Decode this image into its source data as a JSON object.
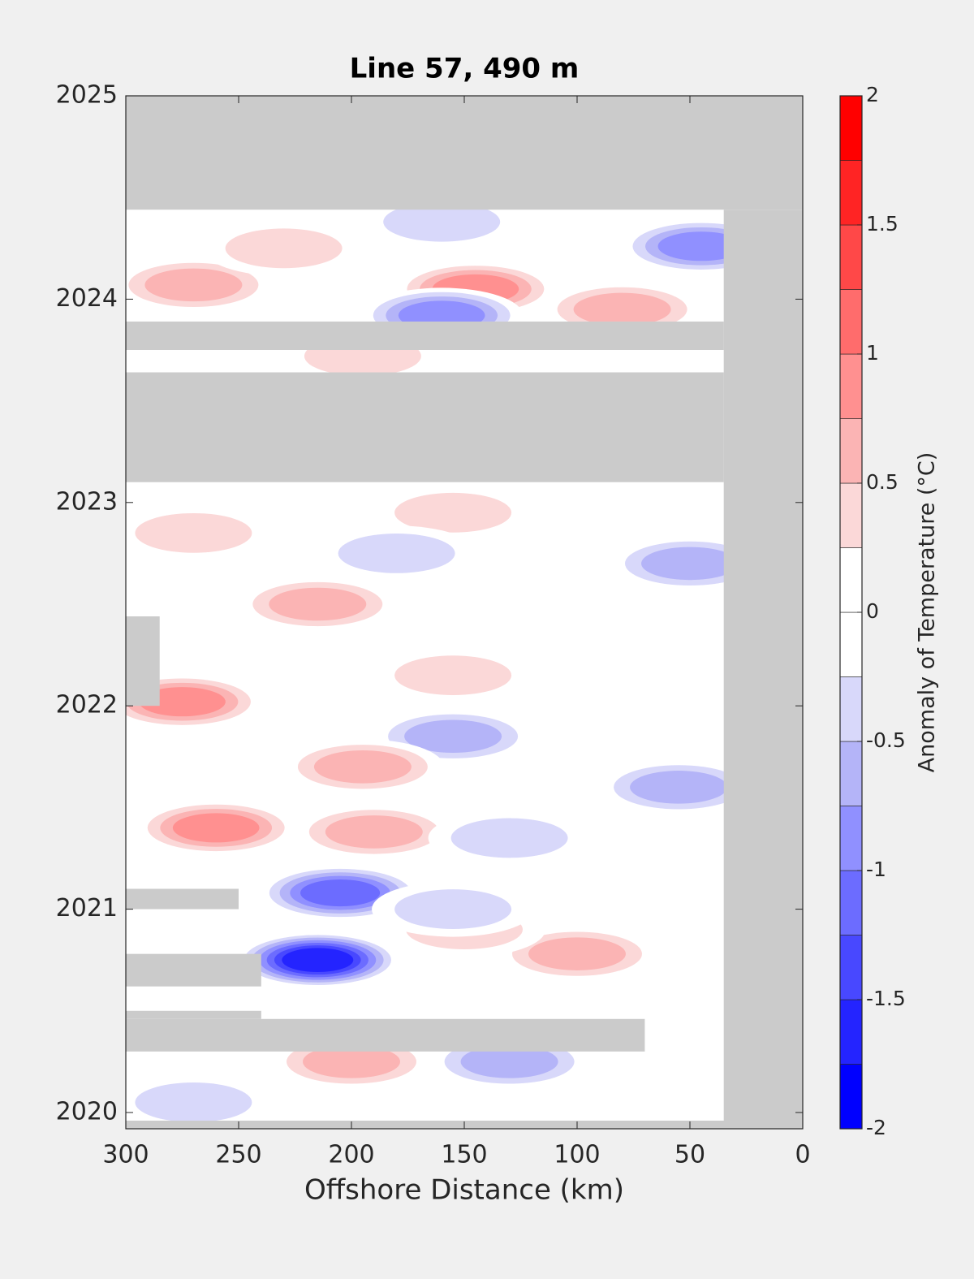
{
  "chart_data": {
    "type": "contour",
    "title": "Line 57, 490 m",
    "x_label": "Offshore Distance (km)",
    "colorbar_label": "Anomaly of Temperature (°C)",
    "xlim": [
      300,
      0
    ],
    "xticks": [
      300,
      250,
      200,
      150,
      100,
      50,
      0
    ],
    "ylim": [
      2019.92,
      2025
    ],
    "yticks": [
      2020,
      2021,
      2022,
      2023,
      2024,
      2025
    ],
    "clim": [
      -2,
      2
    ],
    "cticks": [
      -2,
      -1.5,
      -1,
      -0.5,
      0,
      0.5,
      1,
      1.5,
      2
    ],
    "level_step": 0.25,
    "colormap": [
      "#0000ff",
      "#2424ff",
      "#4848ff",
      "#6c6cff",
      "#9090ff",
      "#b4b4f8",
      "#d8d8fa",
      "#ffffff",
      "#ffffff",
      "#fbd8d8",
      "#fbb4b4",
      "#ff9090",
      "#ff6c6c",
      "#ff4848",
      "#ff2424",
      "#ff0000"
    ],
    "no_data_color": "#cbcbcb",
    "no_data": [
      {
        "x": [
          300,
          0
        ],
        "y": [
          2024.44,
          2025
        ]
      },
      {
        "x": [
          35,
          0
        ],
        "y": [
          2019.92,
          2024.44
        ]
      },
      {
        "x": [
          300,
          0
        ],
        "y": [
          2019.92,
          2019.96
        ]
      },
      {
        "x": [
          300,
          35
        ],
        "y": [
          2023.1,
          2023.64
        ]
      },
      {
        "x": [
          300,
          35
        ],
        "y": [
          2023.75,
          2023.89
        ]
      },
      {
        "x": [
          300,
          70
        ],
        "y": [
          2020.3,
          2020.46
        ]
      },
      {
        "x": [
          300,
          240
        ],
        "y": [
          2020.46,
          2020.5
        ]
      },
      {
        "x": [
          300,
          240
        ],
        "y": [
          2020.62,
          2020.78
        ]
      },
      {
        "x": [
          300,
          250
        ],
        "y": [
          2021.0,
          2021.1
        ]
      },
      {
        "x": [
          300,
          285
        ],
        "y": [
          2022.0,
          2022.44
        ]
      }
    ],
    "anomalies": [
      {
        "distance": 145,
        "year": 2024.05,
        "value": 1.0
      },
      {
        "distance": 45,
        "year": 2024.26,
        "value": -1.0
      },
      {
        "distance": 160,
        "year": 2023.92,
        "value": -1.0
      },
      {
        "distance": 270,
        "year": 2024.07,
        "value": 0.75
      },
      {
        "distance": 80,
        "year": 2023.95,
        "value": 0.75
      },
      {
        "distance": 195,
        "year": 2023.72,
        "value": 0.5
      },
      {
        "distance": 230,
        "year": 2024.25,
        "value": 0.5
      },
      {
        "distance": 160,
        "year": 2024.38,
        "value": -0.5
      },
      {
        "distance": 215,
        "year": 2022.5,
        "value": 0.75
      },
      {
        "distance": 50,
        "year": 2022.7,
        "value": -0.75
      },
      {
        "distance": 155,
        "year": 2022.95,
        "value": 0.5
      },
      {
        "distance": 270,
        "year": 2022.85,
        "value": 0.5
      },
      {
        "distance": 180,
        "year": 2022.75,
        "value": -0.5
      },
      {
        "distance": 155,
        "year": 2022.15,
        "value": 0.5
      },
      {
        "distance": 275,
        "year": 2022.02,
        "value": 1.0
      },
      {
        "distance": 155,
        "year": 2021.85,
        "value": -0.75
      },
      {
        "distance": 195,
        "year": 2021.7,
        "value": 0.75
      },
      {
        "distance": 55,
        "year": 2021.6,
        "value": -0.75
      },
      {
        "distance": 260,
        "year": 2021.4,
        "value": 1.0
      },
      {
        "distance": 190,
        "year": 2021.38,
        "value": 0.75
      },
      {
        "distance": 130,
        "year": 2021.35,
        "value": -0.5
      },
      {
        "distance": 205,
        "year": 2021.08,
        "value": -1.25
      },
      {
        "distance": 215,
        "year": 2020.75,
        "value": -1.75
      },
      {
        "distance": 100,
        "year": 2020.78,
        "value": 0.75
      },
      {
        "distance": 150,
        "year": 2020.9,
        "value": 0.5
      },
      {
        "distance": 155,
        "year": 2021.0,
        "value": -0.5
      },
      {
        "distance": 200,
        "year": 2020.25,
        "value": 0.75
      },
      {
        "distance": 130,
        "year": 2020.25,
        "value": -0.75
      },
      {
        "distance": 270,
        "year": 2020.05,
        "value": -0.5
      }
    ]
  }
}
